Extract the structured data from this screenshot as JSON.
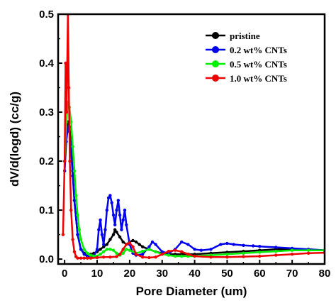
{
  "chart_data": {
    "type": "line",
    "title": "",
    "xlabel": "Pore Diameter (um)",
    "ylabel": "dV/d(logd) (cc/g)",
    "xlim": [
      -2,
      80
    ],
    "ylim": [
      -0.01,
      0.5
    ],
    "xticks": [
      "0",
      "10",
      "20",
      "30",
      "40",
      "50",
      "60",
      "70",
      "80"
    ],
    "yticks": [
      "0.0",
      "0.1",
      "0.2",
      "0.3",
      "0.4",
      "0.5"
    ],
    "legend_position": "top-right",
    "grid": false,
    "series": [
      {
        "name": "pristine",
        "color": "#000000",
        "x": [
          0,
          0.5,
          1,
          1.5,
          2,
          2.5,
          3,
          4,
          5,
          6,
          7,
          8,
          9,
          10,
          11,
          12,
          13,
          14,
          15,
          15.5,
          16,
          17,
          18,
          19,
          20,
          21,
          22,
          23,
          24,
          26,
          28,
          30,
          32,
          34,
          36,
          38,
          40,
          45,
          50,
          55,
          60,
          65,
          70,
          75,
          80
        ],
        "y": [
          0.2,
          0.26,
          0.28,
          0.27,
          0.23,
          0.18,
          0.12,
          0.05,
          0.02,
          0.012,
          0.01,
          0.01,
          0.012,
          0.015,
          0.02,
          0.025,
          0.03,
          0.04,
          0.05,
          0.06,
          0.055,
          0.045,
          0.035,
          0.03,
          0.035,
          0.038,
          0.035,
          0.03,
          0.025,
          0.02,
          0.015,
          0.012,
          0.01,
          0.01,
          0.01,
          0.01,
          0.01,
          0.012,
          0.014,
          0.016,
          0.018,
          0.02,
          0.02,
          0.02,
          0.018
        ]
      },
      {
        "name": "0.2 wt% CNTs",
        "color": "#0000ee",
        "x": [
          0,
          0.5,
          1,
          1.5,
          2,
          2.5,
          3,
          4,
          5,
          6,
          7,
          8,
          9,
          10,
          10.5,
          11,
          11.5,
          12,
          12.5,
          13,
          13.5,
          14,
          14.5,
          15,
          15.5,
          16,
          16.5,
          17,
          17.5,
          18,
          18.5,
          19,
          20,
          21,
          22,
          24,
          26,
          27,
          28,
          30,
          32,
          34,
          36,
          38,
          40,
          42,
          45,
          48,
          50,
          52,
          55,
          58,
          60,
          65,
          70,
          75,
          80
        ],
        "y": [
          0.18,
          0.24,
          0.27,
          0.26,
          0.22,
          0.17,
          0.12,
          0.05,
          0.02,
          0.01,
          0.005,
          0.004,
          0.006,
          0.02,
          0.06,
          0.08,
          0.05,
          0.03,
          0.06,
          0.1,
          0.125,
          0.13,
          0.115,
          0.09,
          0.07,
          0.1,
          0.12,
          0.09,
          0.06,
          0.08,
          0.1,
          0.07,
          0.03,
          0.012,
          0.008,
          0.01,
          0.025,
          0.035,
          0.03,
          0.015,
          0.012,
          0.02,
          0.035,
          0.03,
          0.02,
          0.018,
          0.02,
          0.03,
          0.032,
          0.03,
          0.028,
          0.027,
          0.026,
          0.024,
          0.022,
          0.02,
          0.018
        ]
      },
      {
        "name": "0.5 wt% CNTs",
        "color": "#00ee00",
        "x": [
          0,
          0.5,
          1,
          1.5,
          2,
          2.5,
          3,
          3.5,
          4,
          4.5,
          5,
          6,
          7,
          8,
          9,
          10,
          11,
          12,
          13,
          14,
          15,
          16,
          17,
          18,
          19,
          20,
          22,
          24,
          26,
          28,
          30,
          32,
          34,
          36,
          38,
          40,
          45,
          50,
          55,
          60,
          65,
          70,
          75,
          80
        ],
        "y": [
          0.2,
          0.28,
          0.32,
          0.31,
          0.28,
          0.23,
          0.18,
          0.13,
          0.09,
          0.06,
          0.04,
          0.02,
          0.012,
          0.008,
          0.006,
          0.006,
          0.01,
          0.015,
          0.02,
          0.02,
          0.018,
          0.012,
          0.008,
          0.012,
          0.02,
          0.018,
          0.012,
          0.016,
          0.02,
          0.015,
          0.01,
          0.008,
          0.006,
          0.006,
          0.006,
          0.006,
          0.008,
          0.01,
          0.012,
          0.014,
          0.016,
          0.018,
          0.018,
          0.018
        ]
      },
      {
        "name": "1.0 wt% CNTs",
        "color": "#ee0000",
        "x": [
          -0.5,
          0,
          0.3,
          0.6,
          1,
          1.3,
          1.6,
          2,
          2.5,
          3,
          3.5,
          4,
          5,
          6,
          7,
          8,
          10,
          12,
          14,
          16,
          17,
          18,
          19,
          20,
          21,
          22,
          24,
          26,
          28,
          30,
          32,
          34,
          36,
          38,
          40,
          45,
          50,
          55,
          60,
          65,
          70,
          75,
          80
        ],
        "y": [
          0.05,
          0.2,
          0.4,
          0.3,
          0.5,
          0.35,
          0.2,
          0.1,
          0.04,
          0.015,
          0.005,
          0.002,
          0.002,
          0.002,
          0.002,
          0.002,
          0.003,
          0.004,
          0.004,
          0.005,
          0.01,
          0.02,
          0.03,
          0.033,
          0.025,
          0.01,
          0.004,
          0.003,
          0.004,
          0.01,
          0.016,
          0.018,
          0.015,
          0.01,
          0.006,
          0.004,
          0.004,
          0.005,
          0.006,
          0.008,
          0.01,
          0.012,
          0.013
        ]
      }
    ]
  }
}
